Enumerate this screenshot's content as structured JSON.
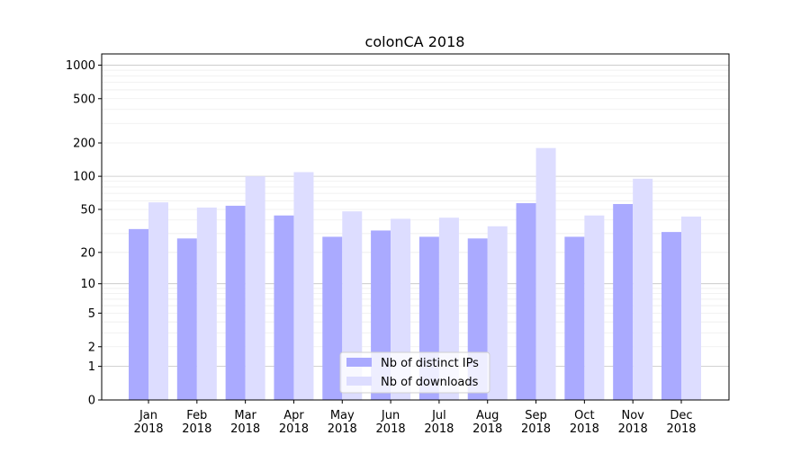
{
  "chart_data": {
    "type": "bar",
    "title": "colonCA 2018",
    "xlabel": "",
    "ylabel": "",
    "yscale": "symlog (log(1+y))",
    "ylim": [
      0,
      1260
    ],
    "yticks": [
      0,
      1,
      2,
      5,
      10,
      20,
      50,
      100,
      200,
      500,
      1000
    ],
    "ytick_labels": [
      "0",
      "1",
      "2",
      "5",
      "10",
      "20",
      "50",
      "100",
      "200",
      "500",
      "1000"
    ],
    "grid": true,
    "legend_position": "bottom-center",
    "categories": [
      "Jan\n2018",
      "Feb\n2018",
      "Mar\n2018",
      "Apr\n2018",
      "May\n2018",
      "Jun\n2018",
      "Jul\n2018",
      "Aug\n2018",
      "Sep\n2018",
      "Oct\n2018",
      "Nov\n2018",
      "Dec\n2018"
    ],
    "category_lines": [
      [
        "Jan",
        "2018"
      ],
      [
        "Feb",
        "2018"
      ],
      [
        "Mar",
        "2018"
      ],
      [
        "Apr",
        "2018"
      ],
      [
        "May",
        "2018"
      ],
      [
        "Jun",
        "2018"
      ],
      [
        "Jul",
        "2018"
      ],
      [
        "Aug",
        "2018"
      ],
      [
        "Sep",
        "2018"
      ],
      [
        "Oct",
        "2018"
      ],
      [
        "Nov",
        "2018"
      ],
      [
        "Dec",
        "2018"
      ]
    ],
    "series": [
      {
        "name": "Nb of distinct IPs",
        "color": "#aaaaff",
        "values": [
          33,
          27,
          54,
          44,
          28,
          32,
          28,
          27,
          57,
          28,
          56,
          31
        ]
      },
      {
        "name": "Nb of downloads",
        "color": "#ddddff",
        "values": [
          58,
          52,
          100,
          109,
          48,
          41,
          42,
          35,
          180,
          44,
          95,
          43
        ]
      }
    ]
  }
}
